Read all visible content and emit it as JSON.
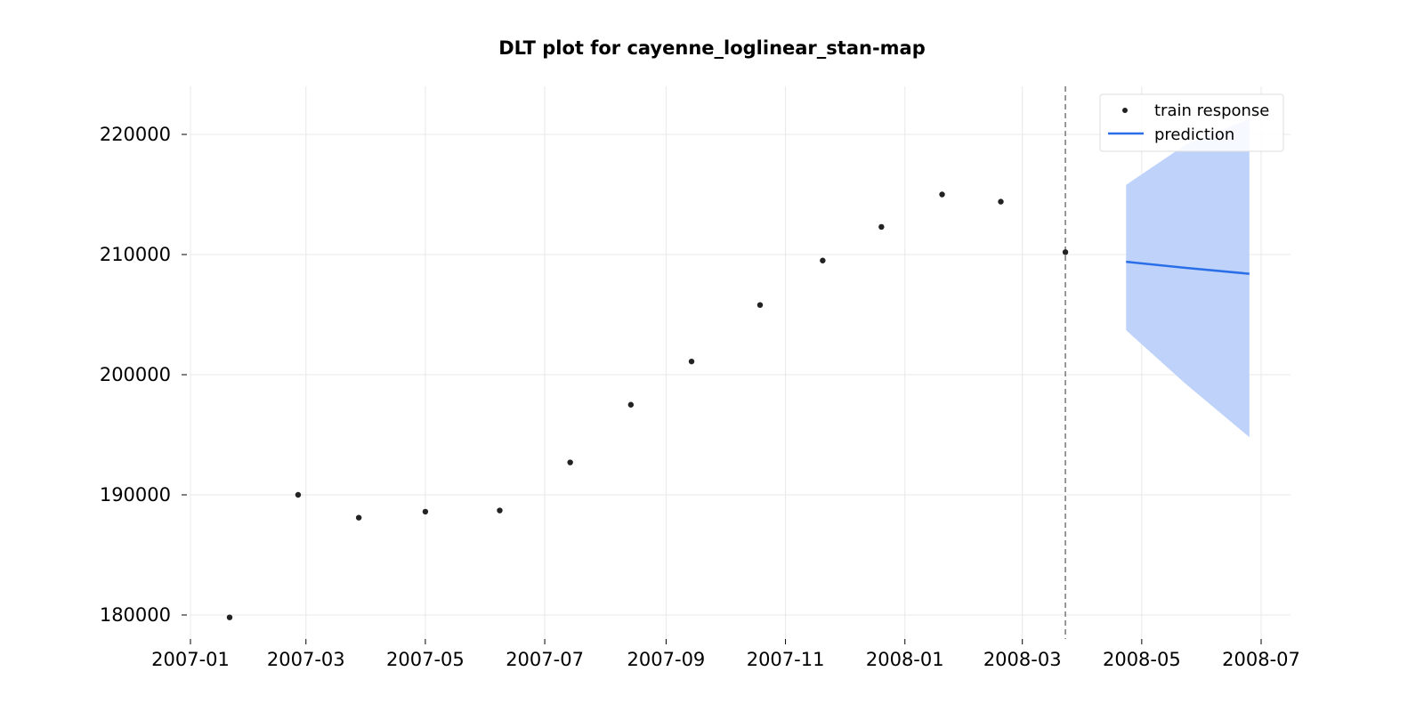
{
  "chart_data": {
    "type": "line",
    "title": "DLT plot for cayenne_loglinear_stan-map",
    "xlabel": "",
    "ylabel": "",
    "x_axis": "date",
    "xlim": [
      "2007-01-01",
      "2008-07-16"
    ],
    "ylim": [
      178000,
      224000
    ],
    "x_ticks": [
      "2007-01",
      "2007-03",
      "2007-05",
      "2007-07",
      "2007-09",
      "2007-11",
      "2008-01",
      "2008-03",
      "2008-05",
      "2008-07"
    ],
    "y_ticks": [
      180000,
      190000,
      200000,
      210000,
      220000
    ],
    "grid": true,
    "legend_position": "top-right",
    "train_cutoff": "2008-03-23",
    "series": [
      {
        "name": "train response",
        "kind": "scatter",
        "color": "#222222",
        "points": [
          {
            "x": "2007-01-21",
            "y": 179800
          },
          {
            "x": "2007-02-25",
            "y": 190000
          },
          {
            "x": "2007-03-28",
            "y": 188100
          },
          {
            "x": "2007-05-01",
            "y": 188600
          },
          {
            "x": "2007-06-08",
            "y": 188700
          },
          {
            "x": "2007-07-14",
            "y": 192700
          },
          {
            "x": "2007-08-14",
            "y": 197500
          },
          {
            "x": "2007-09-14",
            "y": 201100
          },
          {
            "x": "2007-10-19",
            "y": 205800
          },
          {
            "x": "2007-11-20",
            "y": 209500
          },
          {
            "x": "2007-12-20",
            "y": 212300
          },
          {
            "x": "2008-01-20",
            "y": 215000
          },
          {
            "x": "2008-02-19",
            "y": 214400
          },
          {
            "x": "2008-03-23",
            "y": 210200
          }
        ]
      },
      {
        "name": "prediction",
        "kind": "line",
        "color": "#2a6fe8",
        "band_color": "#bfd3fa",
        "points": [
          {
            "x": "2008-04-23",
            "y": 209400,
            "lower": 203700,
            "upper": 215800
          },
          {
            "x": "2008-05-23",
            "y": 208900,
            "lower": 199300,
            "upper": 219100
          },
          {
            "x": "2008-06-25",
            "y": 208400,
            "lower": 194800,
            "upper": 221300
          }
        ]
      }
    ]
  }
}
